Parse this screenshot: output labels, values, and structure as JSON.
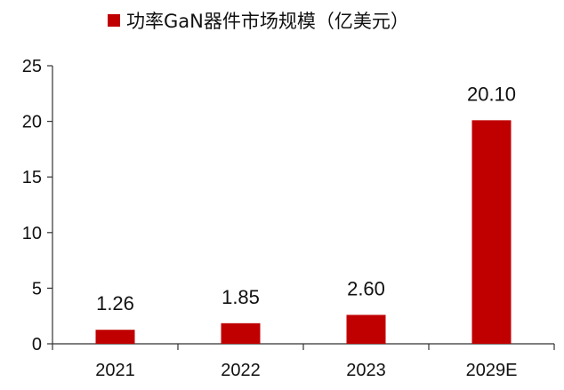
{
  "chart_data": {
    "type": "bar",
    "title": "",
    "xlabel": "",
    "ylabel": "",
    "categories": [
      "2021",
      "2022",
      "2023",
      "2029E"
    ],
    "series": [
      {
        "name": "功率GaN器件市场规模（亿美元）",
        "values": [
          1.26,
          1.85,
          2.6,
          20.1
        ],
        "value_labels": [
          "1.26",
          "1.85",
          "2.60",
          "20.10"
        ],
        "color": "#c00000"
      }
    ],
    "ylim": [
      0,
      25
    ],
    "yticks": [
      0,
      5,
      10,
      15,
      20,
      25
    ],
    "grid": false,
    "legend_position": "top-center"
  },
  "legend": {
    "label": "功率GaN器件市场规模（亿美元）",
    "color": "#c00000"
  },
  "colors": {
    "axis": "#333333",
    "bar": "#c00000"
  }
}
